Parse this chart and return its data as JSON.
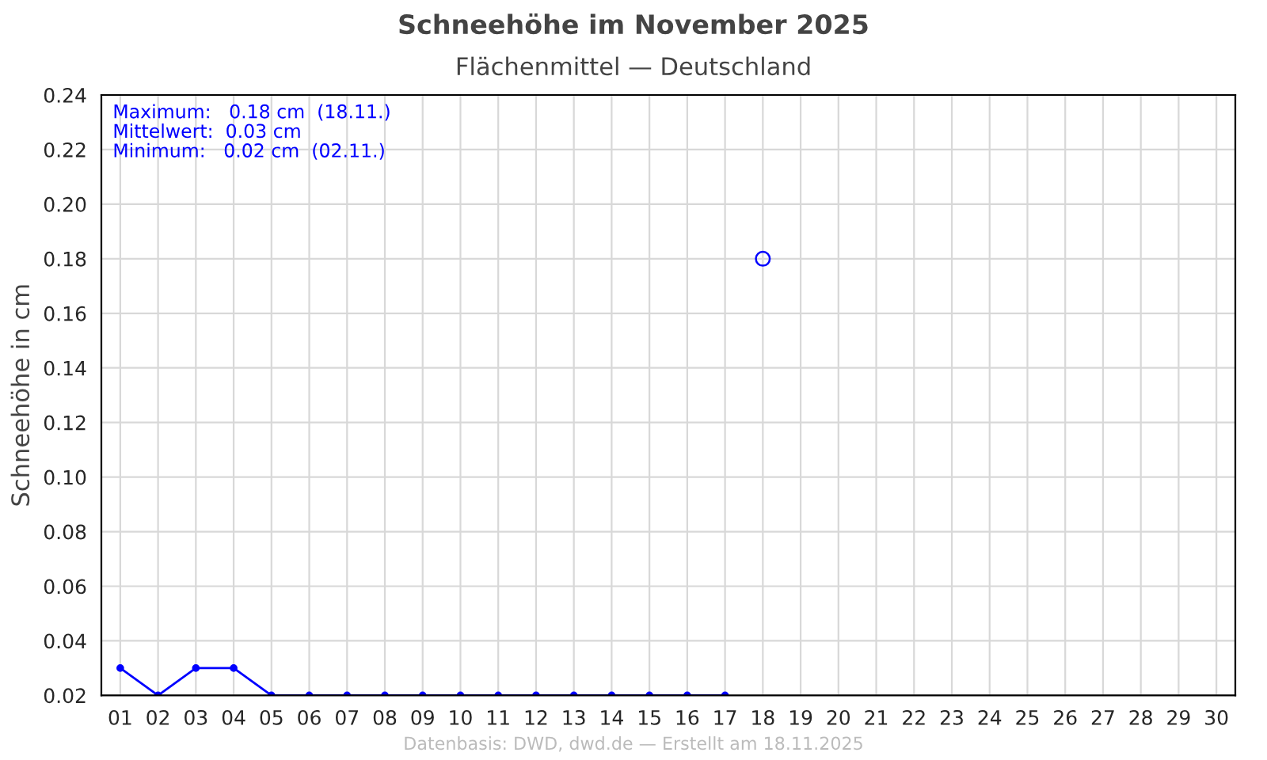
{
  "chart_data": {
    "type": "line",
    "title": "Schneehöhe im November 2025",
    "subtitle": "Flächenmittel — Deutschland",
    "ylabel": "Schneehöhe in cm",
    "categories": [
      "01",
      "02",
      "03",
      "04",
      "05",
      "06",
      "07",
      "08",
      "09",
      "10",
      "11",
      "12",
      "13",
      "14",
      "15",
      "16",
      "17",
      "18",
      "19",
      "20",
      "21",
      "22",
      "23",
      "24",
      "25",
      "26",
      "27",
      "28",
      "29",
      "30"
    ],
    "series": [
      {
        "marker": "circle",
        "color": "#0000ff",
        "values": [
          0.03,
          0.02,
          0.03,
          0.03,
          0.02,
          0.02,
          0.02,
          0.02,
          0.02,
          0.02,
          0.02,
          0.02,
          0.02,
          0.02,
          0.02,
          0.02,
          0.02,
          null,
          null,
          null,
          null,
          null,
          null,
          null,
          null,
          null,
          null,
          null,
          null,
          null
        ]
      },
      {
        "type": "scatter",
        "marker": "circle",
        "color": "#0000ff",
        "values": [
          null,
          null,
          null,
          null,
          null,
          null,
          null,
          null,
          null,
          null,
          null,
          null,
          null,
          null,
          null,
          null,
          null,
          0.18,
          null,
          null,
          null,
          null,
          null,
          null,
          null,
          null,
          null,
          null,
          null,
          null
        ]
      }
    ],
    "ylim": [
      0.02,
      0.24
    ],
    "yticks": [
      {
        "value": 0.02,
        "label": "0.02"
      },
      {
        "value": 0.04,
        "label": "0.04"
      },
      {
        "value": 0.06,
        "label": "0.06"
      },
      {
        "value": 0.08,
        "label": "0.08"
      },
      {
        "value": 0.1,
        "label": "0.10"
      },
      {
        "value": 0.12,
        "label": "0.12"
      },
      {
        "value": 0.14,
        "label": "0.14"
      },
      {
        "value": 0.16,
        "label": "0.16"
      },
      {
        "value": 0.18,
        "label": "0.18"
      },
      {
        "value": 0.2,
        "label": "0.20"
      },
      {
        "value": 0.22,
        "label": "0.22"
      },
      {
        "value": 0.24,
        "label": "0.24"
      }
    ],
    "grid": true,
    "annotations": [
      "Maximum:   0.18 cm  (18.11.)\nMittelwert:  0.03 cm\nMinimum:   0.02 cm  (02.11.)",
      "Datenbasis: DWD, dwd.de — Erstellt am 18.11.2025"
    ]
  }
}
